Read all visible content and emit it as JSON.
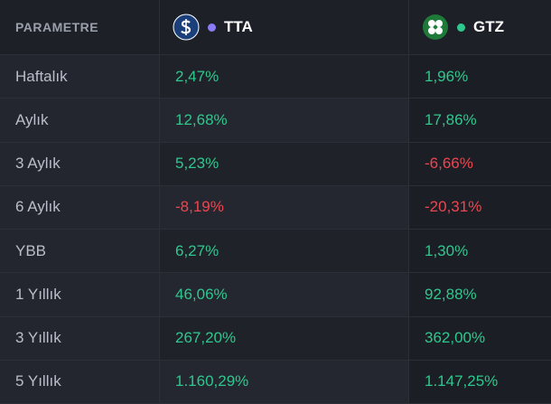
{
  "table": {
    "header": [
      "PARAMETRE",
      "TTA",
      "GTZ"
    ],
    "rows": [
      [
        "Haftalık",
        "2,47%",
        "1,96%"
      ],
      [
        "Aylık",
        "12,68%",
        "17,86%"
      ],
      [
        "3 Aylık",
        "5,23%",
        "-6,66%"
      ],
      [
        "6 Aylık",
        "-8,19%",
        "-20,31%"
      ],
      [
        "YBB",
        "6,27%",
        "1,30%"
      ],
      [
        "1 Yıllık",
        "46,06%",
        "92,88%"
      ],
      [
        "3 Yıllık",
        "267,20%",
        "362,00%"
      ],
      [
        "5 Yıllık",
        "1.160,29%",
        "1.147,25%"
      ]
    ]
  }
}
